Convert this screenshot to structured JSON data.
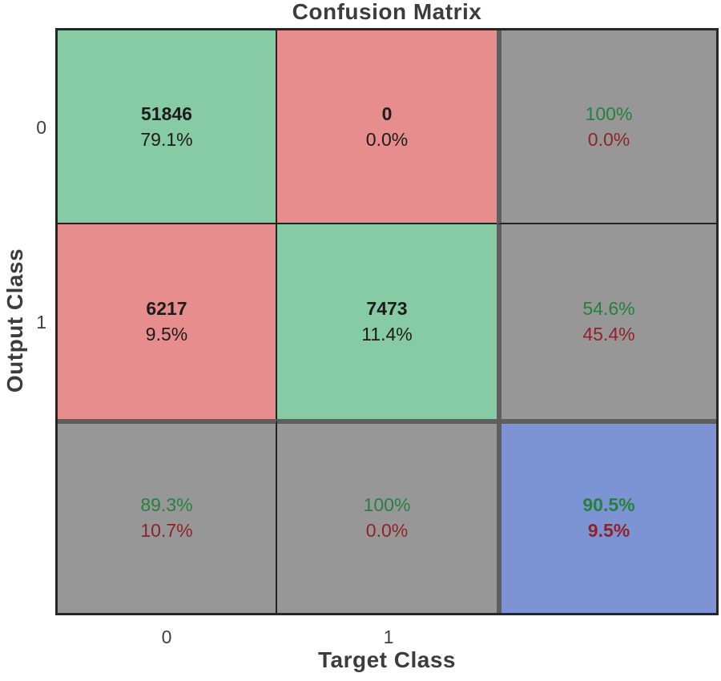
{
  "title": "Confusion Matrix",
  "axes": {
    "xlabel": "Target Class",
    "ylabel": "Output Class",
    "xticks": [
      "0",
      "1"
    ],
    "yticks": [
      "0",
      "1"
    ]
  },
  "colors": {
    "cell-green": "#86CBA4",
    "cell-red": "#E88D8D",
    "cell-gray": "#979797",
    "cell-blue": "#7C94D4",
    "text-dark": "#1C1C1C",
    "text-green": "#26803E",
    "text-red": "#8E2329",
    "frame": "#262626",
    "divider": "#5E5E5E",
    "label": "#3C3C3C"
  },
  "grid": {
    "cells": [
      {
        "value": "51846",
        "percent": "79.1%"
      },
      {
        "value": "0",
        "percent": "0.0%"
      },
      {
        "value": "100%",
        "percent": "0.0%"
      },
      {
        "value": "6217",
        "percent": "9.5%"
      },
      {
        "value": "7473",
        "percent": "11.4%"
      },
      {
        "value": "54.6%",
        "percent": "45.4%"
      },
      {
        "value": "89.3%",
        "percent": "10.7%"
      },
      {
        "value": "100%",
        "percent": "0.0%"
      },
      {
        "value": "90.5%",
        "percent": "9.5%"
      }
    ]
  },
  "chart_data": {
    "type": "heatmap",
    "title": "Confusion Matrix",
    "xlabel": "Target Class",
    "ylabel": "Output Class",
    "classes": [
      "0",
      "1"
    ],
    "counts": [
      [
        51846,
        0
      ],
      [
        6217,
        7473
      ]
    ],
    "percent_of_total": [
      [
        79.1,
        0.0
      ],
      [
        9.5,
        11.4
      ]
    ],
    "row_summary_pct": [
      [
        100,
        0.0
      ],
      [
        54.6,
        45.4
      ]
    ],
    "col_summary_pct": [
      [
        89.3,
        10.7
      ],
      [
        100,
        0.0
      ]
    ],
    "overall_pct": {
      "correct": 90.5,
      "incorrect": 9.5
    },
    "legend_position": "none",
    "grid": true
  }
}
